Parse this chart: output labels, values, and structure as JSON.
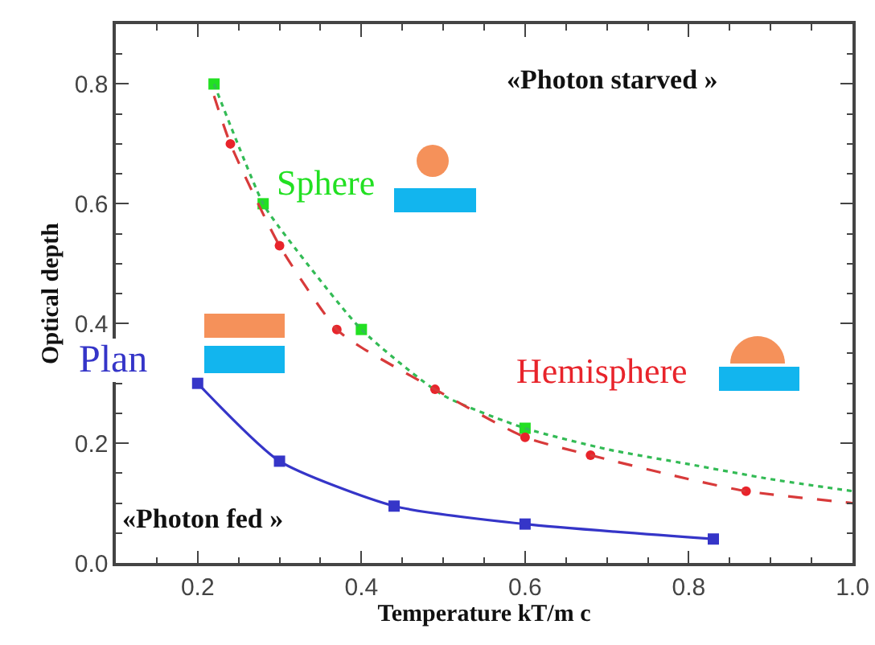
{
  "chart_data": {
    "type": "line",
    "xlabel": "Temperature kT/m c",
    "ylabel": "Optical depth",
    "annotations": [
      "«Photon starved »",
      "«Photon fed »"
    ],
    "xlim": [
      0.1,
      1.0
    ],
    "ylim": [
      0,
      0.9
    ],
    "xticks": [
      {
        "value": 0.15,
        "label": null
      },
      0.2,
      {
        "value": 0.25,
        "label": null
      },
      {
        "value": 0.3,
        "label": null
      },
      {
        "value": 0.35,
        "label": null
      },
      0.4,
      {
        "value": 0.45,
        "label": null
      },
      {
        "value": 0.5,
        "label": null
      },
      {
        "value": 0.55,
        "label": null
      },
      0.6,
      {
        "value": 0.65,
        "label": null
      },
      {
        "value": 0.7,
        "label": null
      },
      {
        "value": 0.75,
        "label": null
      },
      0.8,
      {
        "value": 0.85,
        "label": null
      },
      {
        "value": 0.9,
        "label": null
      },
      {
        "value": 0.95,
        "label": null
      },
      {
        "value": 1,
        "label": "1.0"
      }
    ],
    "yticks": [
      {
        "value": 0,
        "label": "0.0"
      },
      {
        "value": 0.05,
        "label": null
      },
      {
        "value": 0.1,
        "label": null
      },
      {
        "value": 0.15,
        "label": null
      },
      0.2,
      {
        "value": 0.25,
        "label": null
      },
      {
        "value": 0.3,
        "label": null
      },
      {
        "value": 0.35,
        "label": null
      },
      0.4,
      {
        "value": 0.45,
        "label": null
      },
      {
        "value": 0.5,
        "label": null
      },
      {
        "value": 0.55,
        "label": null
      },
      0.6,
      {
        "value": 0.65,
        "label": null
      },
      {
        "value": 0.7,
        "label": null
      },
      {
        "value": 0.75,
        "label": null
      },
      0.8,
      {
        "value": 0.85,
        "label": null
      }
    ],
    "series": [
      {
        "name": "Sphere",
        "type": "scatter",
        "marker": "square",
        "color": "#22e022",
        "x": [
          0.22,
          0.28,
          0.4,
          0.6
        ],
        "values": [
          0.8,
          0.6,
          0.39,
          0.225
        ]
      },
      {
        "marker": "none",
        "line_style": "dotted",
        "color": "#33bb55",
        "x": [
          0.22,
          0.28,
          0.3,
          0.4,
          0.5,
          0.6,
          0.7,
          0.8,
          0.9,
          1.0
        ],
        "values": [
          0.8,
          0.6,
          0.56,
          0.39,
          0.28,
          0.225,
          0.19,
          0.165,
          0.14,
          0.12
        ]
      },
      {
        "name": "Hemisphere",
        "type": "scatter",
        "marker": "circle",
        "color": "#e8242b",
        "x": [
          0.24,
          0.3,
          0.37,
          0.49,
          0.6,
          0.68,
          0.87
        ],
        "values": [
          0.7,
          0.53,
          0.39,
          0.29,
          0.21,
          0.18,
          0.12
        ]
      },
      {
        "marker": "none",
        "line_style": "dashed",
        "color": "#d83a3a",
        "x": [
          0.22,
          0.24,
          0.3,
          0.37,
          0.4,
          0.49,
          0.6,
          0.68,
          0.8,
          0.87,
          1.0
        ],
        "values": [
          0.78,
          0.7,
          0.53,
          0.39,
          0.36,
          0.29,
          0.21,
          0.18,
          0.14,
          0.12,
          0.1
        ]
      },
      {
        "name": "Plan",
        "marker": "square",
        "line_style": "solid",
        "color": "#3535c8",
        "x": [
          0.2,
          0.3,
          0.44,
          0.6,
          0.83
        ],
        "values": [
          0.3,
          0.17,
          0.095,
          0.065,
          0.04
        ]
      }
    ]
  }
}
